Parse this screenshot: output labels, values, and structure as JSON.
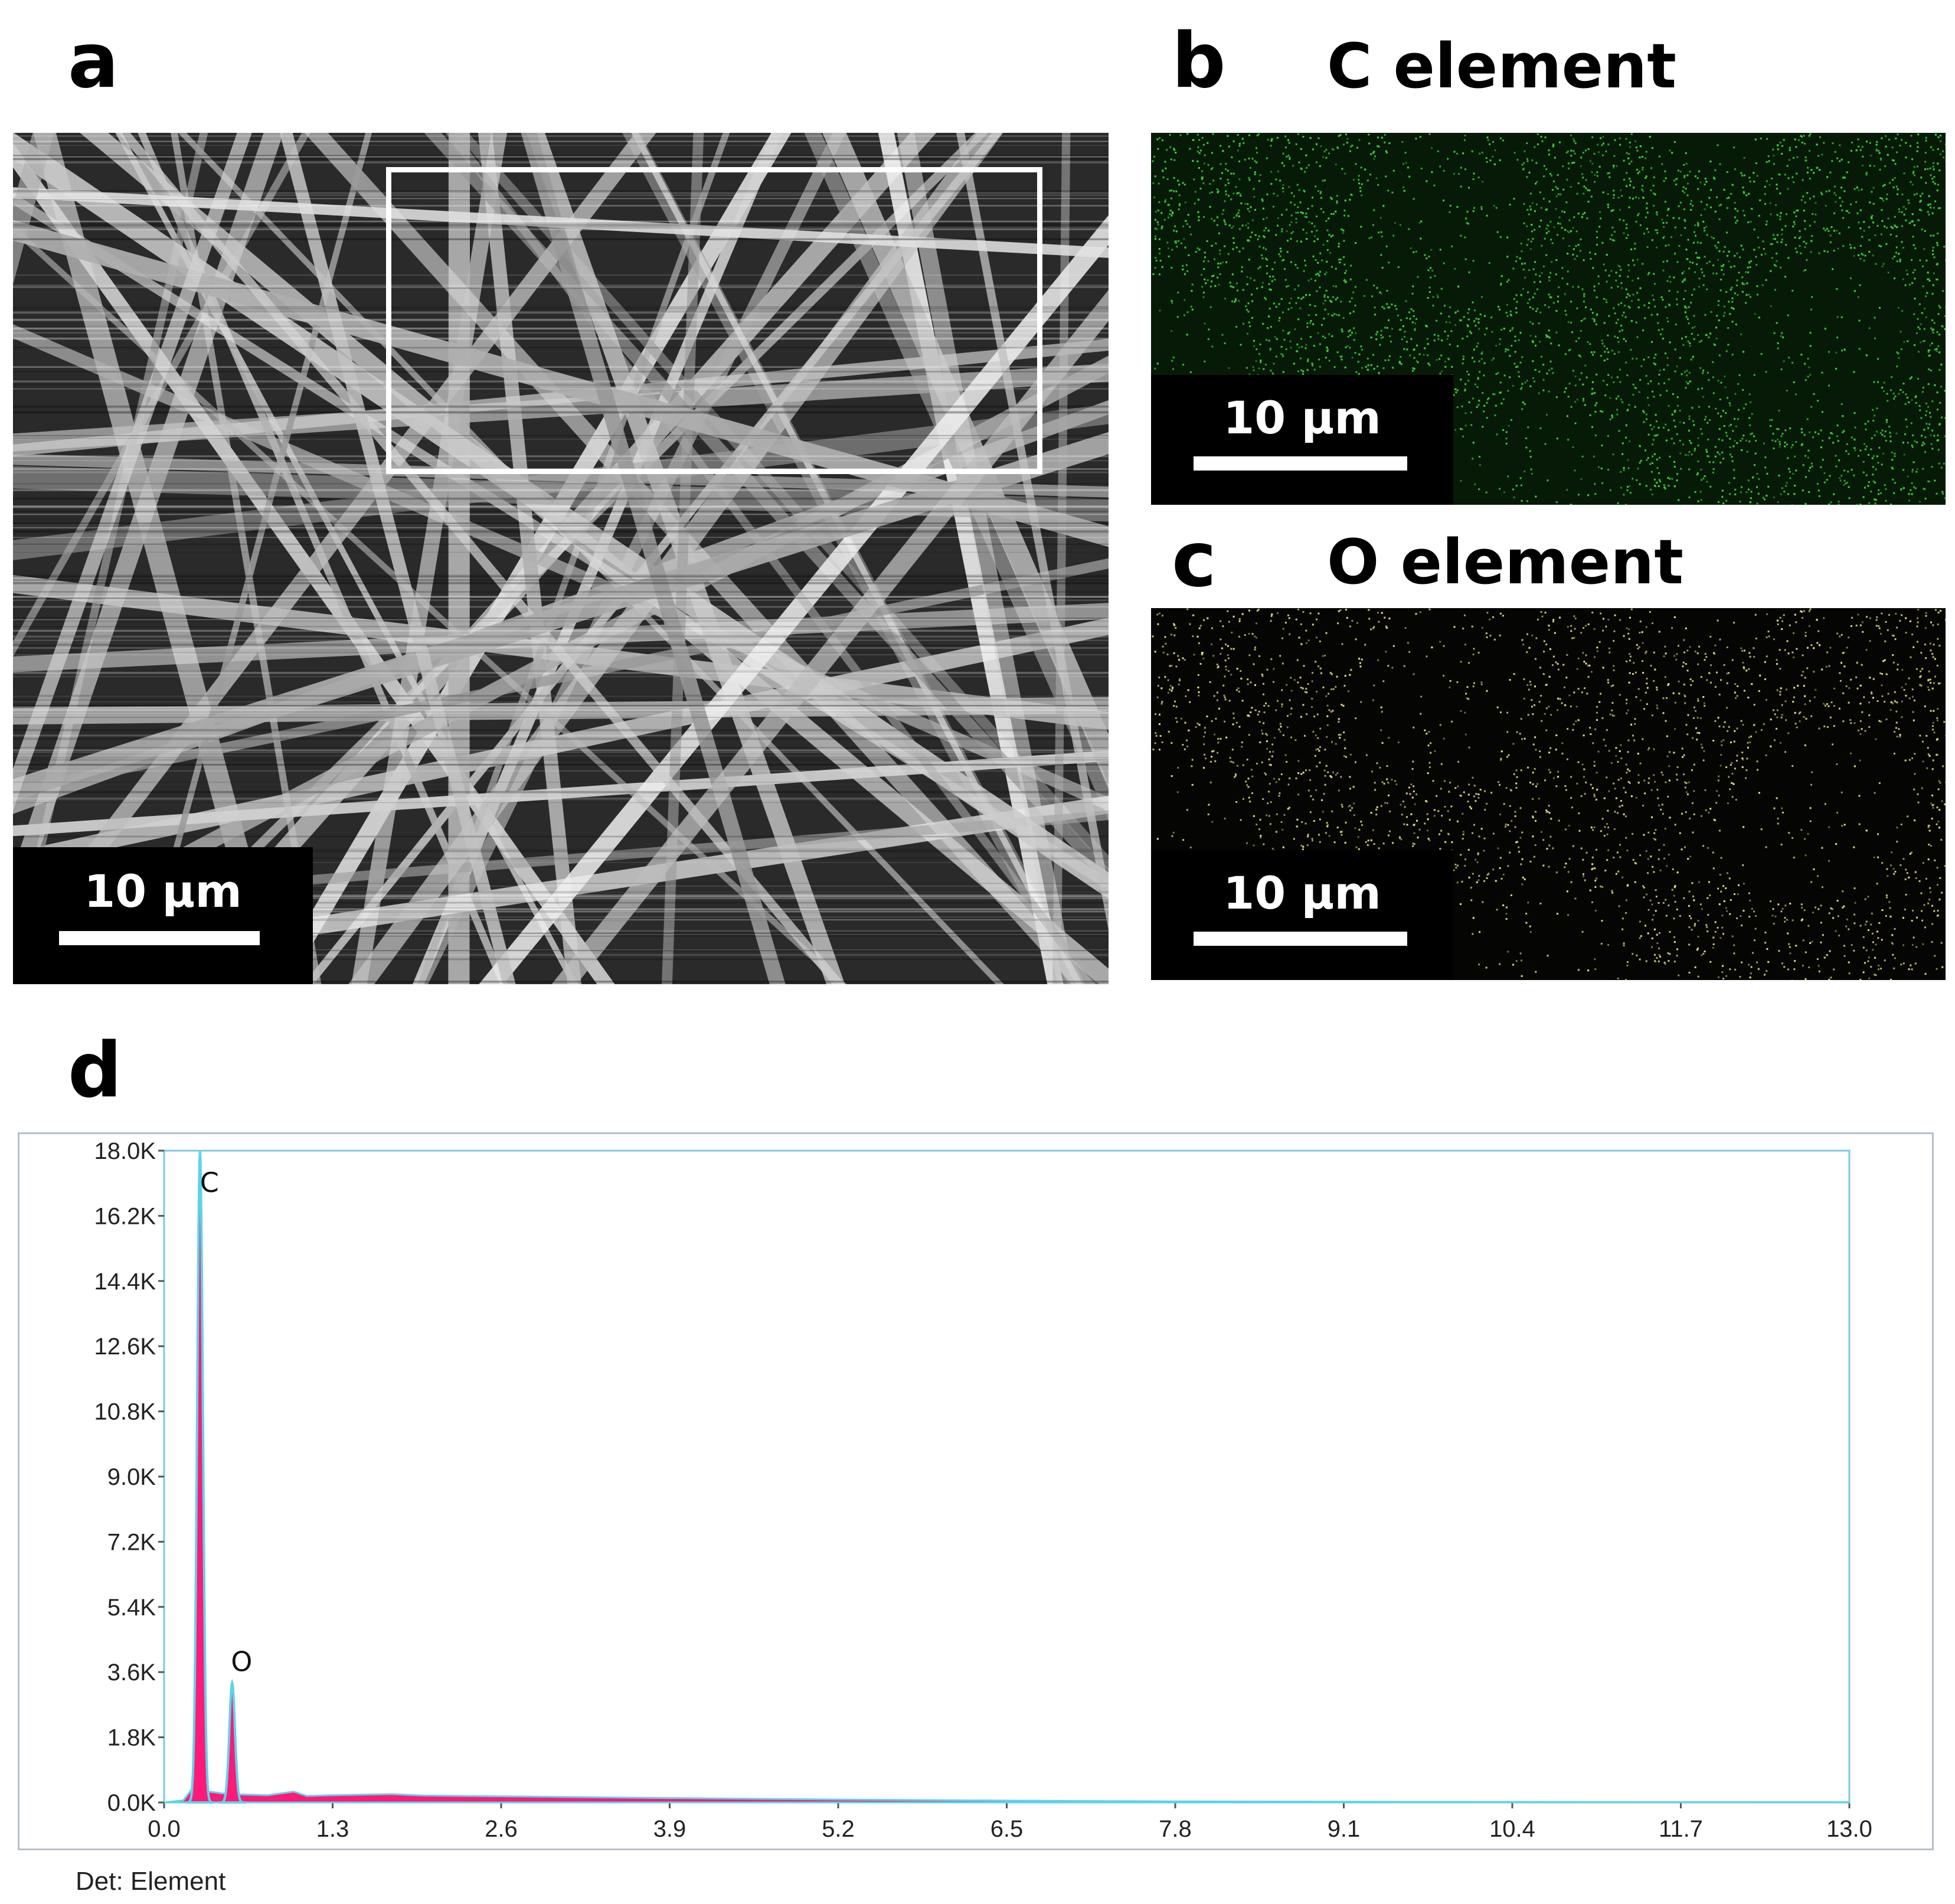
{
  "panels": {
    "a": {
      "letter": "a",
      "scalebar": "10 μm"
    },
    "b": {
      "letter": "b",
      "title": "C element",
      "scalebar": "10 μm",
      "map_color": "#3ecf3e"
    },
    "c": {
      "letter": "c",
      "title": "O element",
      "scalebar": "10 μm",
      "map_color": "#e8e08a"
    },
    "d": {
      "letter": "d",
      "detector_label": "Det: Element"
    }
  },
  "chart_data": {
    "type": "line",
    "xlim": [
      0.0,
      13.0
    ],
    "ylim": [
      0,
      18000
    ],
    "x_ticks": [
      "0.0",
      "1.3",
      "2.6",
      "3.9",
      "5.2",
      "6.5",
      "7.8",
      "9.1",
      "10.4",
      "11.7",
      "13.0"
    ],
    "y_ticks": [
      "0.0K",
      "1.8K",
      "3.6K",
      "5.4K",
      "7.2K",
      "9.0K",
      "10.8K",
      "12.6K",
      "14.4K",
      "16.2K",
      "18.0K"
    ],
    "series_color": "#ff1a7a",
    "outline_color": "#5fd3e8",
    "peaks": [
      {
        "label": "C",
        "energy": 0.277,
        "counts": 18000
      },
      {
        "label": "O",
        "energy": 0.525,
        "counts": 3300
      }
    ],
    "background_points": [
      [
        0.0,
        0
      ],
      [
        0.15,
        60
      ],
      [
        0.22,
        400
      ],
      [
        0.35,
        300
      ],
      [
        0.45,
        250
      ],
      [
        0.6,
        220
      ],
      [
        0.8,
        200
      ],
      [
        1.0,
        300
      ],
      [
        1.1,
        180
      ],
      [
        1.3,
        200
      ],
      [
        1.75,
        230
      ],
      [
        2.0,
        190
      ],
      [
        2.6,
        170
      ],
      [
        3.9,
        120
      ],
      [
        5.2,
        80
      ],
      [
        6.5,
        50
      ],
      [
        7.8,
        30
      ],
      [
        9.1,
        20
      ],
      [
        10.4,
        15
      ],
      [
        11.7,
        10
      ],
      [
        13.0,
        8
      ]
    ]
  }
}
